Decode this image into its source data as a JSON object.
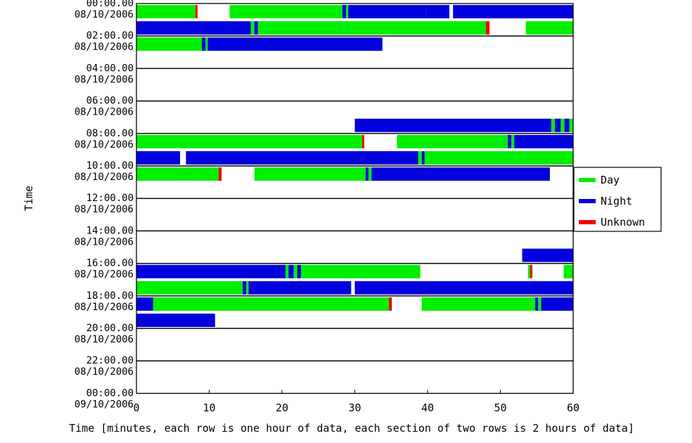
{
  "chart_data": {
    "type": "bar",
    "xlabel": "Time [minutes, each row is one hour of data, each section of two rows is 2 hours of data]",
    "ylabel": "Time",
    "xlim": [
      0,
      60
    ],
    "x_ticks": [
      "0",
      "10",
      "20",
      "30",
      "40",
      "50",
      "60"
    ],
    "grid": false,
    "legend_position": "right",
    "y_ticks": [
      {
        "time": "00:00.00",
        "date": "08/10/2006"
      },
      {
        "time": "02:00.00",
        "date": "08/10/2006"
      },
      {
        "time": "04:00.00",
        "date": "08/10/2006"
      },
      {
        "time": "06:00.00",
        "date": "08/10/2006"
      },
      {
        "time": "08:00.00",
        "date": "08/10/2006"
      },
      {
        "time": "10:00.00",
        "date": "08/10/2006"
      },
      {
        "time": "12:00.00",
        "date": "08/10/2006"
      },
      {
        "time": "14:00.00",
        "date": "08/10/2006"
      },
      {
        "time": "16:00.00",
        "date": "08/10/2006"
      },
      {
        "time": "18:00.00",
        "date": "08/10/2006"
      },
      {
        "time": "20:00.00",
        "date": "08/10/2006"
      },
      {
        "time": "22:00.00",
        "date": "08/10/2006"
      },
      {
        "time": "00:00.00",
        "date": "09/10/2006"
      }
    ],
    "series": [
      {
        "name": "Day",
        "color": "#00ee00"
      },
      {
        "name": "Night",
        "color": "#0000dd"
      },
      {
        "name": "Unknown",
        "color": "#ee0000"
      }
    ],
    "rows": [
      {
        "hour": 0,
        "segments": [
          {
            "state": "Day",
            "start": 0,
            "end": 8.1
          },
          {
            "state": "Unknown",
            "start": 8.1,
            "end": 8.4
          },
          {
            "state": "Day",
            "start": 12.8,
            "end": 28.3
          },
          {
            "state": "Night",
            "start": 28.3,
            "end": 28.8
          },
          {
            "state": "Day",
            "start": 28.8,
            "end": 29.1
          },
          {
            "state": "Night",
            "start": 29.1,
            "end": 39.8
          },
          {
            "state": "Night",
            "start": 39.8,
            "end": 43.0
          },
          {
            "state": "Night",
            "start": 43.5,
            "end": 60
          }
        ]
      },
      {
        "hour": 1,
        "segments": [
          {
            "state": "Night",
            "start": 0,
            "end": 15.7
          },
          {
            "state": "Day",
            "start": 15.7,
            "end": 16.2
          },
          {
            "state": "Night",
            "start": 16.2,
            "end": 16.7
          },
          {
            "state": "Day",
            "start": 16.7,
            "end": 48.0
          },
          {
            "state": "Unknown",
            "start": 48.0,
            "end": 48.5
          },
          {
            "state": "Day",
            "start": 53.5,
            "end": 60
          }
        ]
      },
      {
        "hour": 2,
        "segments": [
          {
            "state": "Day",
            "start": 0,
            "end": 9.0
          },
          {
            "state": "Night",
            "start": 9.0,
            "end": 9.5
          },
          {
            "state": "Day",
            "start": 9.5,
            "end": 9.8
          },
          {
            "state": "Night",
            "start": 9.8,
            "end": 33.8
          }
        ]
      },
      {
        "hour": 3,
        "segments": []
      },
      {
        "hour": 4,
        "segments": []
      },
      {
        "hour": 5,
        "segments": []
      },
      {
        "hour": 6,
        "segments": []
      },
      {
        "hour": 7,
        "segments": [
          {
            "state": "Night",
            "start": 30.0,
            "end": 57.0
          },
          {
            "state": "Day",
            "start": 57.0,
            "end": 57.5
          },
          {
            "state": "Night",
            "start": 57.5,
            "end": 58.3
          },
          {
            "state": "Day",
            "start": 58.3,
            "end": 58.8
          },
          {
            "state": "Night",
            "start": 58.8,
            "end": 59.5
          },
          {
            "state": "Day",
            "start": 59.5,
            "end": 60
          }
        ]
      },
      {
        "hour": 8,
        "segments": [
          {
            "state": "Day",
            "start": 0,
            "end": 31.0
          },
          {
            "state": "Unknown",
            "start": 31.0,
            "end": 31.3
          },
          {
            "state": "Day",
            "start": 35.8,
            "end": 51.0
          },
          {
            "state": "Night",
            "start": 51.0,
            "end": 51.5
          },
          {
            "state": "Day",
            "start": 51.5,
            "end": 51.9
          },
          {
            "state": "Night",
            "start": 51.9,
            "end": 60
          }
        ]
      },
      {
        "hour": 9,
        "segments": [
          {
            "state": "Night",
            "start": 0,
            "end": 6.0
          },
          {
            "state": "Night",
            "start": 6.8,
            "end": 38.7
          },
          {
            "state": "Day",
            "start": 38.7,
            "end": 39.2
          },
          {
            "state": "Night",
            "start": 39.2,
            "end": 39.6
          },
          {
            "state": "Day",
            "start": 39.6,
            "end": 60
          }
        ]
      },
      {
        "hour": 10,
        "segments": [
          {
            "state": "Day",
            "start": 0,
            "end": 11.3
          },
          {
            "state": "Unknown",
            "start": 11.3,
            "end": 11.7
          },
          {
            "state": "Day",
            "start": 16.2,
            "end": 31.5
          },
          {
            "state": "Night",
            "start": 31.5,
            "end": 31.9
          },
          {
            "state": "Day",
            "start": 31.9,
            "end": 32.3
          },
          {
            "state": "Night",
            "start": 32.3,
            "end": 56.8
          }
        ]
      },
      {
        "hour": 11,
        "segments": []
      },
      {
        "hour": 12,
        "segments": []
      },
      {
        "hour": 13,
        "segments": []
      },
      {
        "hour": 14,
        "segments": []
      },
      {
        "hour": 15,
        "segments": [
          {
            "state": "Night",
            "start": 53.0,
            "end": 60
          }
        ]
      },
      {
        "hour": 16,
        "segments": [
          {
            "state": "Night",
            "start": 0,
            "end": 20.5
          },
          {
            "state": "Day",
            "start": 20.5,
            "end": 20.9
          },
          {
            "state": "Night",
            "start": 20.9,
            "end": 21.6
          },
          {
            "state": "Day",
            "start": 21.6,
            "end": 22.1
          },
          {
            "state": "Night",
            "start": 22.1,
            "end": 22.6
          },
          {
            "state": "Day",
            "start": 22.6,
            "end": 39.0
          },
          {
            "state": "Day",
            "start": 53.8,
            "end": 54.1
          },
          {
            "state": "Unknown",
            "start": 54.1,
            "end": 54.4
          },
          {
            "state": "Day",
            "start": 58.7,
            "end": 60
          }
        ]
      },
      {
        "hour": 17,
        "segments": [
          {
            "state": "Day",
            "start": 0,
            "end": 14.6
          },
          {
            "state": "Night",
            "start": 14.6,
            "end": 15.1
          },
          {
            "state": "Day",
            "start": 15.1,
            "end": 15.4
          },
          {
            "state": "Night",
            "start": 15.4,
            "end": 29.5
          },
          {
            "state": "Night",
            "start": 30.0,
            "end": 60
          }
        ]
      },
      {
        "hour": 18,
        "segments": [
          {
            "state": "Night",
            "start": 0,
            "end": 2.3
          },
          {
            "state": "Day",
            "start": 2.3,
            "end": 34.7
          },
          {
            "state": "Unknown",
            "start": 34.7,
            "end": 35.1
          },
          {
            "state": "Day",
            "start": 39.2,
            "end": 54.8
          },
          {
            "state": "Night",
            "start": 54.8,
            "end": 55.2
          },
          {
            "state": "Day",
            "start": 55.2,
            "end": 55.6
          },
          {
            "state": "Night",
            "start": 55.6,
            "end": 60
          }
        ]
      },
      {
        "hour": 19,
        "segments": [
          {
            "state": "Night",
            "start": 0,
            "end": 10.8
          }
        ]
      },
      {
        "hour": 20,
        "segments": []
      },
      {
        "hour": 21,
        "segments": []
      },
      {
        "hour": 22,
        "segments": []
      },
      {
        "hour": 23,
        "segments": []
      }
    ]
  }
}
